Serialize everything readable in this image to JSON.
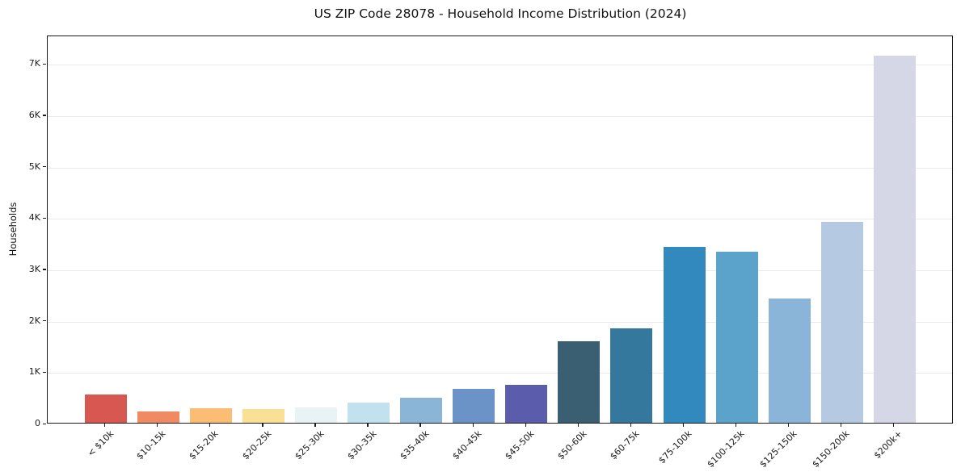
{
  "figure": {
    "title": "US ZIP Code 28078 - Household Income Distribution (2024)"
  },
  "chart_data": {
    "type": "bar",
    "title": "US ZIP Code 28078 - Household Income Distribution (2024)",
    "xlabel": "",
    "ylabel": "Households",
    "categories": [
      "< $10k",
      "$10-15k",
      "$15-20k",
      "$20-25k",
      "$25-30k",
      "$30-35k",
      "$35-40k",
      "$40-45k",
      "$45-50k",
      "$50-60k",
      "$60-75k",
      "$75-100k",
      "$100-125k",
      "$125-150k",
      "$150-200k",
      "$200k+"
    ],
    "values": [
      550,
      220,
      290,
      260,
      300,
      400,
      480,
      660,
      740,
      1590,
      1840,
      3430,
      3330,
      2420,
      3910,
      7150
    ],
    "bar_colors": [
      "#d65850",
      "#f08a62",
      "#fbbc74",
      "#fae094",
      "#e8f3f6",
      "#c2e1ee",
      "#8ab5d6",
      "#6b93c7",
      "#5b5cab",
      "#3a5f72",
      "#35789e",
      "#3289bd",
      "#5ba3cb",
      "#8ab4d8",
      "#b5c9e2",
      "#d5d7e7"
    ],
    "ylim": [
      0,
      7550
    ],
    "yticks": [
      {
        "value": 0,
        "label": "0"
      },
      {
        "value": 1000,
        "label": "1K"
      },
      {
        "value": 2000,
        "label": "2K"
      },
      {
        "value": 3000,
        "label": "3K"
      },
      {
        "value": 4000,
        "label": "4K"
      },
      {
        "value": 5000,
        "label": "5K"
      },
      {
        "value": 6000,
        "label": "6K"
      },
      {
        "value": 7000,
        "label": "7K"
      }
    ],
    "grid": "horizontal-light",
    "legend_position": "none",
    "background_color": "#ffffff",
    "axis_color": "#1a1a1a",
    "gridline_color": "#e9e9e9"
  }
}
